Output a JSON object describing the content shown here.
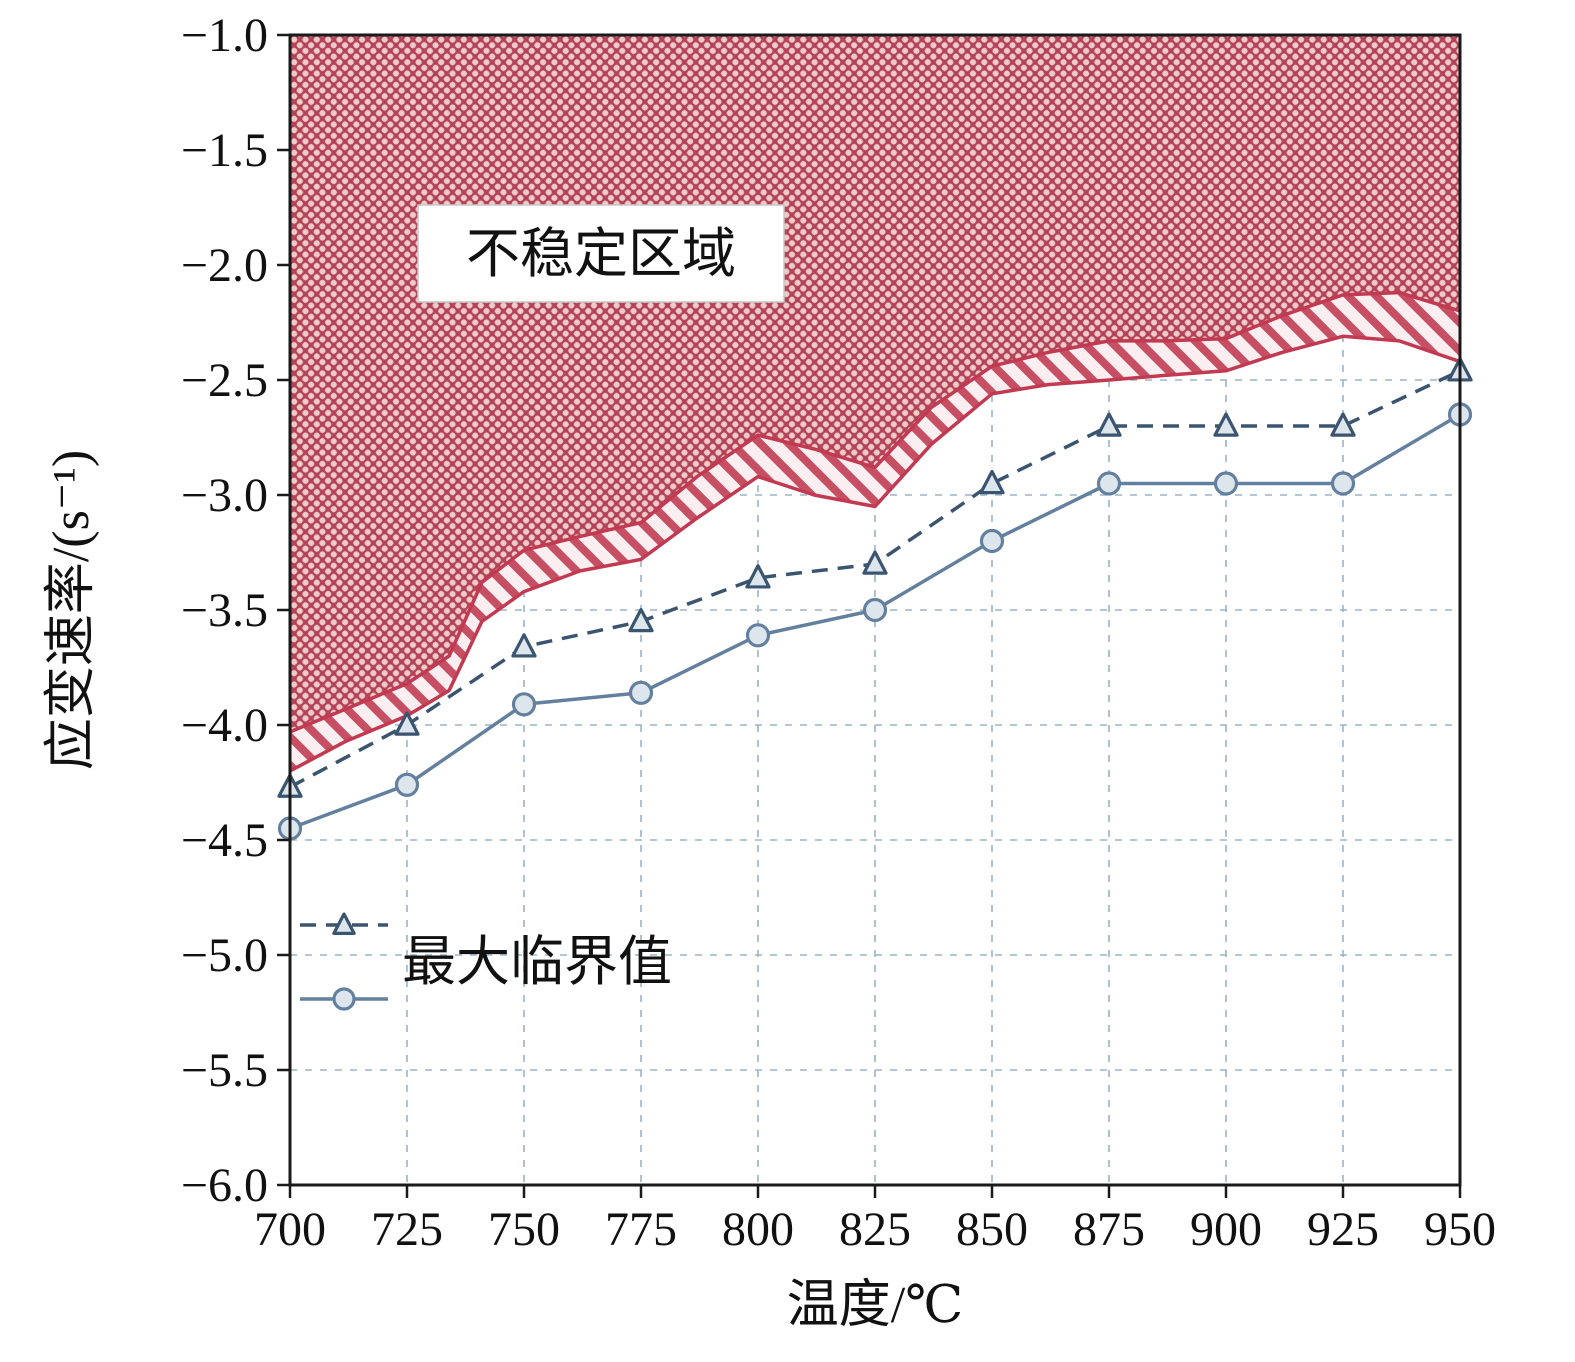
{
  "chart_data": {
    "type": "line",
    "title": "",
    "xlabel": "温度/℃",
    "ylabel": "应变速率/(s⁻¹)",
    "xlim": [
      700,
      950
    ],
    "ylim": [
      -6.0,
      -1.0
    ],
    "grid": true,
    "x_ticks": {
      "values": [
        700,
        725,
        750,
        775,
        800,
        825,
        850,
        875,
        900,
        925,
        950
      ],
      "labels": [
        "700",
        "725",
        "750",
        "775",
        "800",
        "825",
        "850",
        "875",
        "900",
        "925",
        "950"
      ]
    },
    "y_ticks": {
      "values": [
        -6.0,
        -5.5,
        -5.0,
        -4.5,
        -4.0,
        -3.5,
        -3.0,
        -2.5,
        -2.0,
        -1.5,
        -1.0
      ],
      "labels": [
        "−6.0",
        "−5.5",
        "−5.0",
        "−4.5",
        "−4.0",
        "−3.5",
        "−3.0",
        "−2.5",
        "−2.0",
        "−1.5",
        "−1.0"
      ]
    },
    "x": [
      700,
      725,
      750,
      775,
      800,
      825,
      850,
      875,
      900,
      925,
      950
    ],
    "series": [
      {
        "name": "最大临界值",
        "marker": "triangle",
        "line": "dashed",
        "values": [
          -4.27,
          -4.0,
          -3.66,
          -3.55,
          -3.36,
          -3.3,
          -2.95,
          -2.7,
          -2.7,
          -2.7,
          -2.46
        ]
      },
      {
        "name": "",
        "marker": "circle",
        "line": "solid",
        "values": [
          -4.45,
          -4.26,
          -3.91,
          -3.86,
          -3.61,
          -3.5,
          -3.2,
          -2.95,
          -2.95,
          -2.95,
          -2.65
        ]
      }
    ],
    "unstable_region": {
      "label": "不稳定区域",
      "upper_boundary_x": [
        700,
        712,
        725,
        734,
        741,
        750,
        762,
        775,
        787,
        800,
        812,
        825,
        837,
        850,
        862,
        875,
        887,
        900,
        912,
        925,
        937,
        950
      ],
      "upper_boundary_y": [
        -4.03,
        -3.93,
        -3.82,
        -3.7,
        -3.38,
        -3.24,
        -3.18,
        -3.12,
        -2.92,
        -2.74,
        -2.8,
        -2.88,
        -2.62,
        -2.44,
        -2.38,
        -2.33,
        -2.33,
        -2.32,
        -2.22,
        -2.13,
        -2.12,
        -2.2
      ],
      "lower_boundary_x": [
        700,
        712,
        725,
        734,
        741,
        750,
        762,
        775,
        787,
        800,
        812,
        825,
        837,
        850,
        862,
        875,
        887,
        900,
        912,
        925,
        937,
        950
      ],
      "lower_boundary_y": [
        -4.2,
        -4.07,
        -3.96,
        -3.85,
        -3.55,
        -3.42,
        -3.33,
        -3.28,
        -3.1,
        -2.92,
        -3.0,
        -3.05,
        -2.78,
        -2.56,
        -2.52,
        -2.5,
        -2.48,
        -2.46,
        -2.38,
        -2.31,
        -2.33,
        -2.42
      ]
    },
    "legend": {
      "label": "最大临界值"
    },
    "colors": {
      "region_fill_base": "#c75d6f",
      "region_dot": "#efcbc7",
      "region_weave": "#b24257",
      "band_bg": "#fbeef0",
      "band_stripe": "#c64f63",
      "boundary_line": "#c23a52",
      "series_triangle": "#3b5570",
      "series_circle": "#64809f",
      "marker_fill": "#dde6ed",
      "grid": "#9db3c6",
      "axis": "#1a1a1a"
    }
  }
}
